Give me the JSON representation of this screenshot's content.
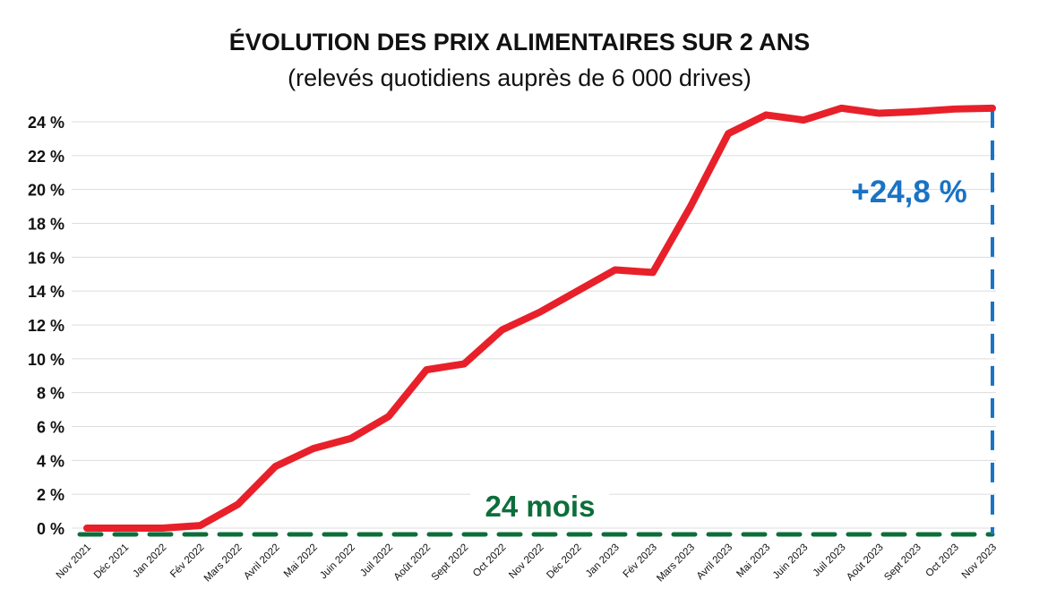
{
  "chart_data": {
    "type": "line",
    "title": "ÉVOLUTION DES PRIX ALIMENTAIRES SUR 2 ANS",
    "subtitle": "(relevés quotidiens auprès de 6 000 drives)",
    "categories": [
      "Nov 2021",
      "Déc 2021",
      "Jan 2022",
      "Fév 2022",
      "Mars 2022",
      "Avril 2022",
      "Mai 2022",
      "Juin 2022",
      "Juil 2022",
      "Août 2022",
      "Sept 2022",
      "Oct 2022",
      "Nov 2022",
      "Déc 2022",
      "Jan 2023",
      "Fév 2023",
      "Mars 2023",
      "Avril 2023",
      "Mai 2023",
      "Juin 2023",
      "Juil 2023",
      "Août 2023",
      "Sept 2023",
      "Oct 2023",
      "Nov 2023"
    ],
    "values": [
      0,
      0,
      0,
      0.15,
      1.4,
      3.65,
      4.7,
      5.3,
      6.6,
      9.35,
      9.7,
      11.7,
      12.75,
      14.0,
      15.25,
      15.1,
      19.0,
      23.3,
      24.4,
      24.1,
      24.8,
      24.5,
      24.6,
      24.75,
      24.8
    ],
    "yticks": [
      "0 %",
      "2 %",
      "4 %",
      "6 %",
      "8 %",
      "10 %",
      "12 %",
      "14 %",
      "16 %",
      "18 %",
      "20 %",
      "22 %",
      "24 %"
    ],
    "ylim": [
      0,
      24
    ],
    "grid": true,
    "line_color": "#e8202a",
    "annotations": {
      "total_change": "+24,8 %",
      "total_change_color": "#1a73c4",
      "duration": "24 mois",
      "duration_color": "#0d6e3a"
    }
  }
}
